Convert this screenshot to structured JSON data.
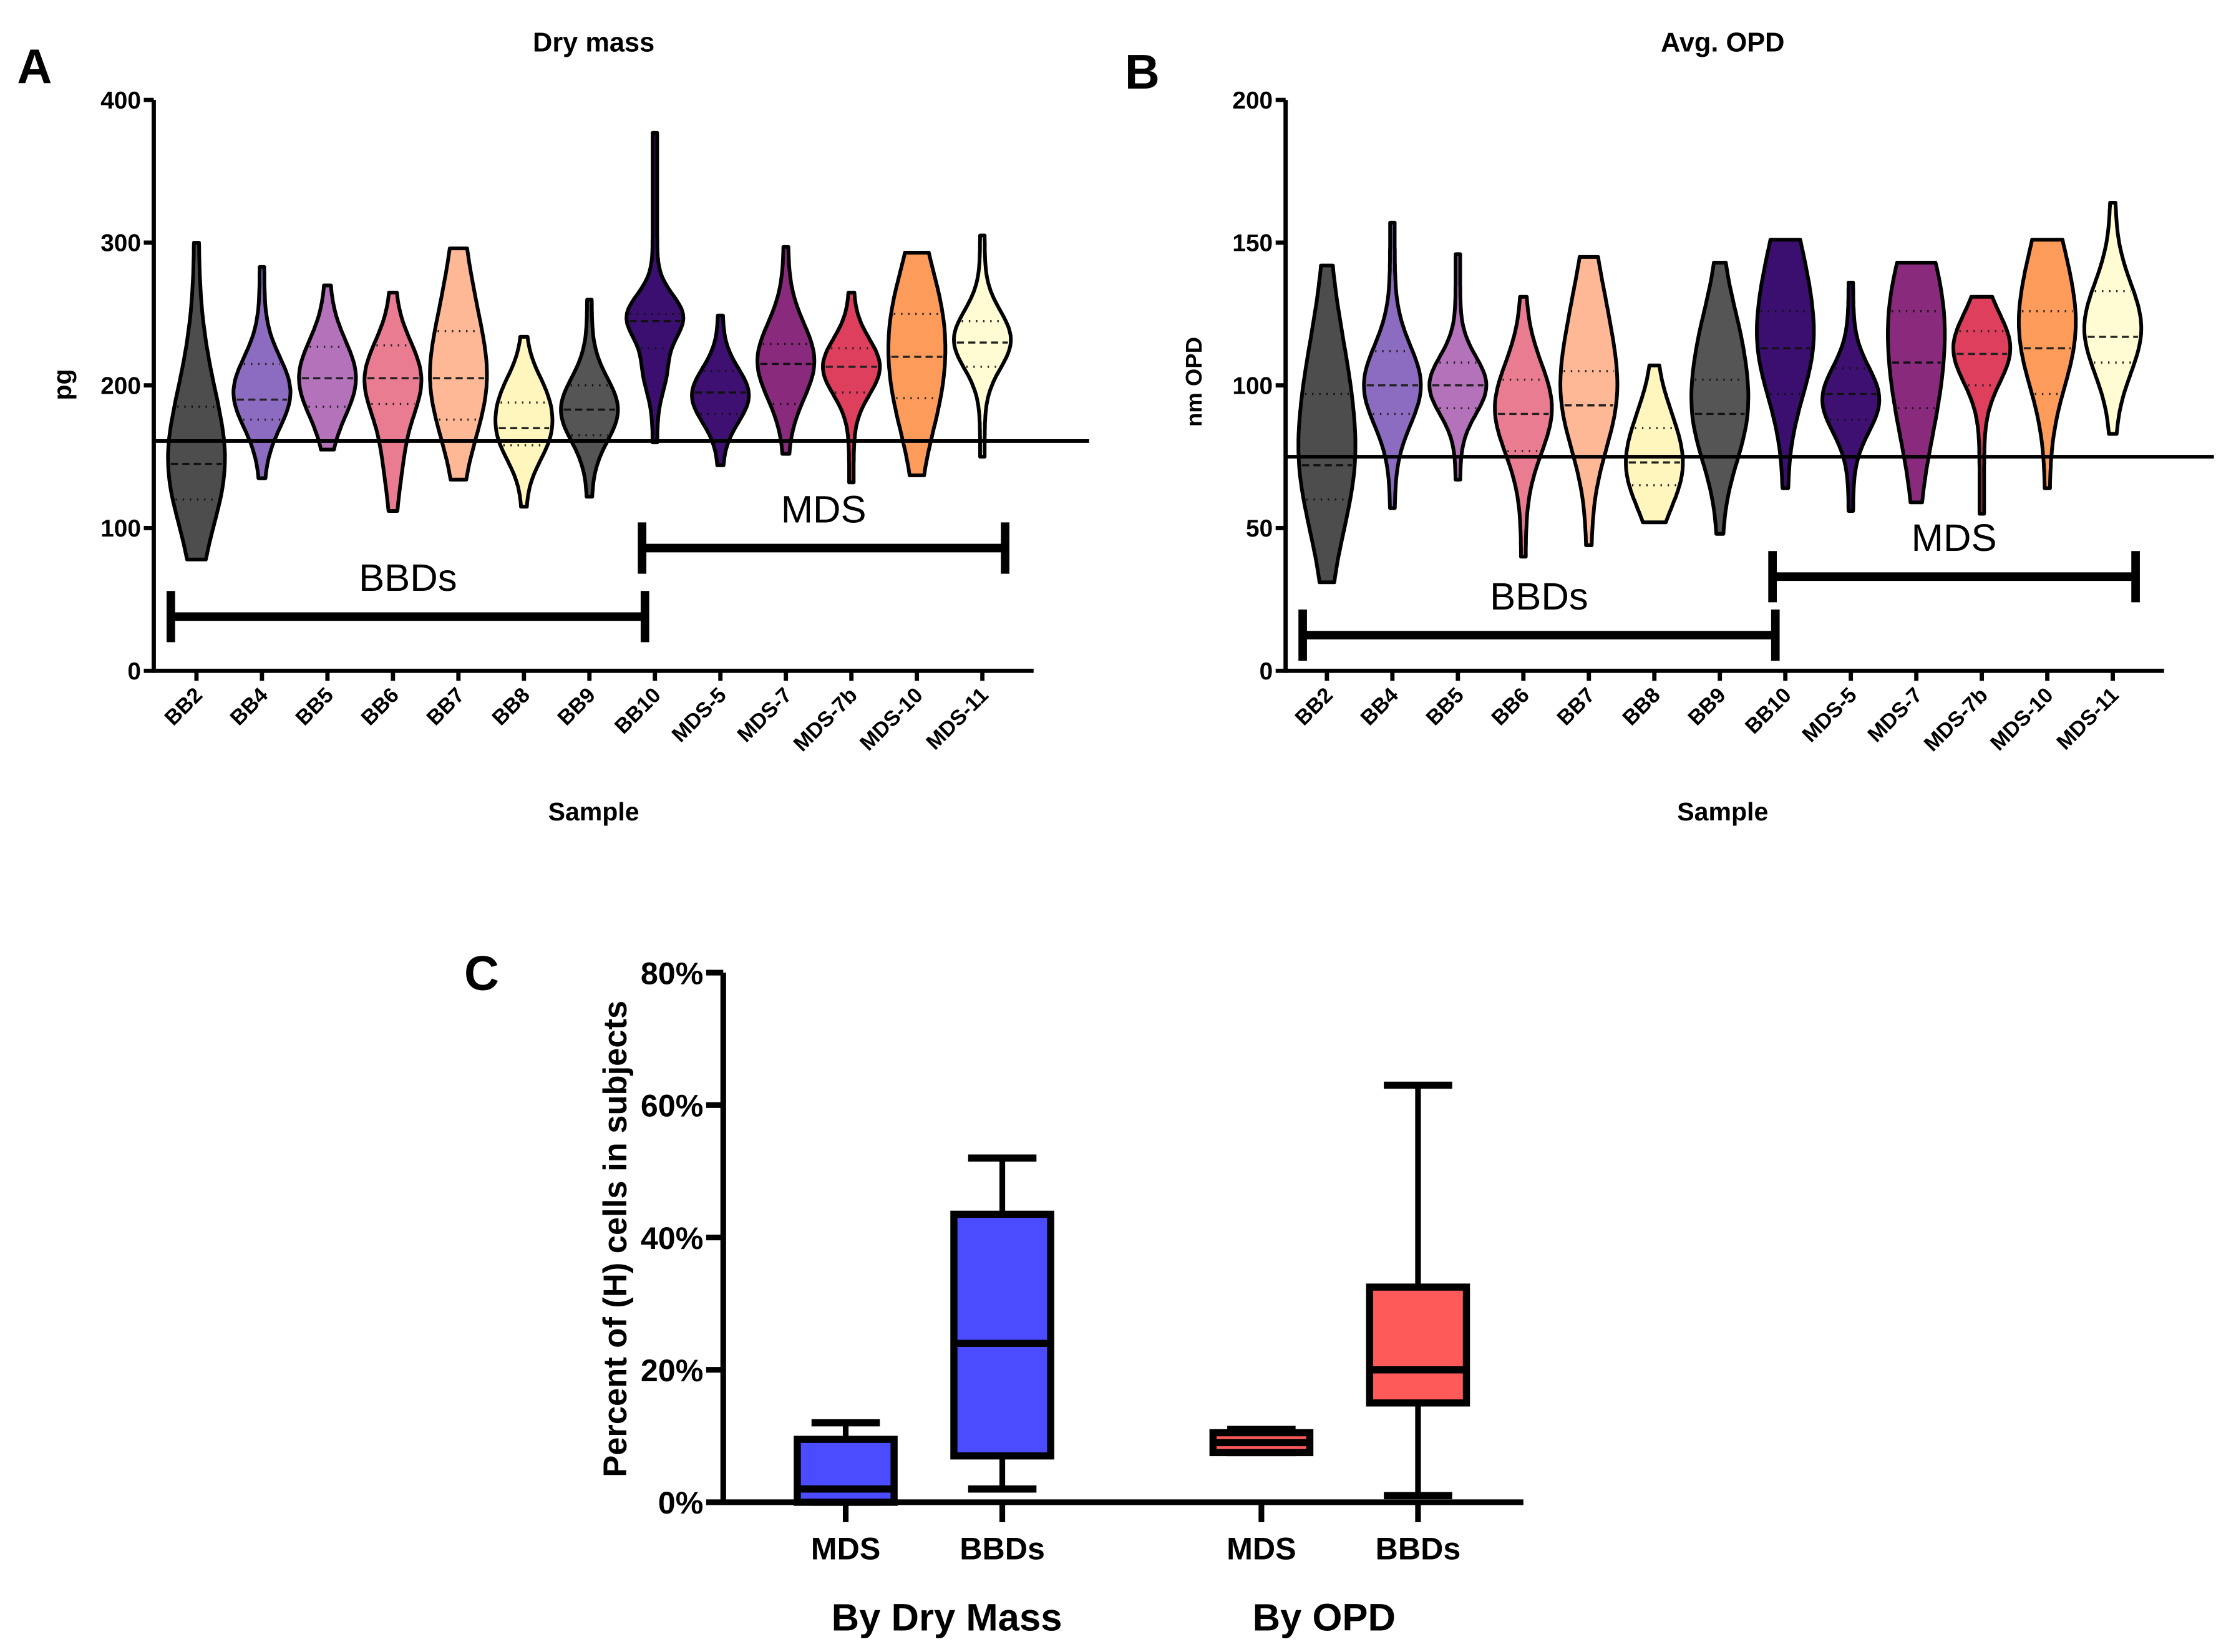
{
  "panel_letters": {
    "a": "A",
    "b": "B",
    "c": "C"
  },
  "chart_data": [
    {
      "type": "violin",
      "title": "Dry mass",
      "xlabel": "Sample",
      "ylabel": "pg",
      "ylim": [
        0,
        400
      ],
      "yticks": [
        0,
        100,
        200,
        300,
        400
      ],
      "threshold": 161,
      "groups": [
        {
          "label": "BBDs",
          "y": 38,
          "from": "BB2",
          "to": "BB10"
        },
        {
          "label": "MDS",
          "y": 86,
          "from": "BB10",
          "to": "MDS-11"
        }
      ],
      "violins": [
        {
          "name": "BB2",
          "color": "#4d4d4d",
          "min": 78,
          "max": 300,
          "q1": 120,
          "median": 145,
          "q3": 185,
          "peaks": [
            [
              140,
              1
            ],
            [
              195,
              0.35
            ]
          ]
        },
        {
          "name": "BB4",
          "color": "#8c6cc0",
          "min": 135,
          "max": 283,
          "q1": 176,
          "median": 190,
          "q3": 215,
          "peaks": [
            [
              195,
              1
            ]
          ]
        },
        {
          "name": "BB5",
          "color": "#b472ba",
          "min": 155,
          "max": 270,
          "q1": 185,
          "median": 205,
          "q3": 227,
          "peaks": [
            [
              205,
              1
            ]
          ]
        },
        {
          "name": "BB6",
          "color": "#ea7c92",
          "min": 112,
          "max": 265,
          "q1": 187,
          "median": 205,
          "q3": 228,
          "peaks": [
            [
              205,
              1
            ],
            [
              150,
              0.25
            ]
          ]
        },
        {
          "name": "BB7",
          "color": "#ffb896",
          "min": 134,
          "max": 296,
          "q1": 176,
          "median": 205,
          "q3": 238,
          "peaks": [
            [
              200,
              1
            ],
            [
              260,
              0.35
            ]
          ]
        },
        {
          "name": "BB8",
          "color": "#fff6bd",
          "min": 115,
          "max": 234,
          "q1": 158,
          "median": 170,
          "q3": 188,
          "peaks": [
            [
              163,
              0.9
            ],
            [
              192,
              0.8
            ]
          ]
        },
        {
          "name": "BB9",
          "color": "#555555",
          "min": 122,
          "max": 260,
          "q1": 165,
          "median": 183,
          "q3": 200,
          "peaks": [
            [
              183,
              1
            ]
          ]
        },
        {
          "name": "BB10",
          "color": "#3b0f70",
          "min": 160,
          "max": 377,
          "q1": 226,
          "median": 245,
          "q3": 250,
          "peaks": [
            [
              248,
              1
            ],
            [
              210,
              0.35
            ]
          ]
        },
        {
          "name": "MDS-5",
          "color": "#3d1072",
          "min": 144,
          "max": 249,
          "q1": 180,
          "median": 195,
          "q3": 210,
          "peaks": [
            [
              193,
              1
            ]
          ]
        },
        {
          "name": "MDS-7",
          "color": "#8a2a7c",
          "min": 152,
          "max": 297,
          "q1": 187,
          "median": 215,
          "q3": 229,
          "peaks": [
            [
              217,
              1
            ]
          ]
        },
        {
          "name": "MDS-7b",
          "color": "#dd3f5c",
          "min": 132,
          "max": 265,
          "q1": 195,
          "median": 213,
          "q3": 226,
          "peaks": [
            [
              213,
              1
            ]
          ]
        },
        {
          "name": "MDS-10",
          "color": "#fd9b5b",
          "min": 137,
          "max": 293,
          "q1": 191,
          "median": 220,
          "q3": 250,
          "peaks": [
            [
              250,
              1
            ],
            [
              195,
              0.9
            ]
          ]
        },
        {
          "name": "MDS-11",
          "color": "#fffcd3",
          "min": 150,
          "max": 305,
          "q1": 213,
          "median": 230,
          "q3": 245,
          "peaks": [
            [
              232,
              1
            ]
          ]
        }
      ]
    },
    {
      "type": "violin",
      "title": "Avg. OPD",
      "xlabel": "Sample",
      "ylabel": "nm OPD",
      "ylim": [
        0,
        200
      ],
      "yticks": [
        0,
        50,
        100,
        150,
        200
      ],
      "threshold": 75,
      "groups": [
        {
          "label": "BBDs",
          "y": 12.5,
          "from": "BB2",
          "to": "BB10"
        },
        {
          "label": "MDS",
          "y": 33,
          "from": "BB10",
          "to": "MDS-11"
        }
      ],
      "violins": [
        {
          "name": "BB2",
          "color": "#4d4d4d",
          "min": 31,
          "max": 142,
          "q1": 60,
          "median": 72,
          "q3": 97,
          "peaks": [
            [
              70,
              1
            ],
            [
              105,
              0.6
            ]
          ]
        },
        {
          "name": "BB4",
          "color": "#8c6cc0",
          "min": 57,
          "max": 157,
          "q1": 90,
          "median": 100,
          "q3": 112,
          "peaks": [
            [
              100,
              1
            ]
          ]
        },
        {
          "name": "BB5",
          "color": "#b472ba",
          "min": 67,
          "max": 146,
          "q1": 92,
          "median": 100,
          "q3": 108,
          "peaks": [
            [
              100,
              1
            ]
          ]
        },
        {
          "name": "BB6",
          "color": "#ea7c92",
          "min": 40,
          "max": 131,
          "q1": 77,
          "median": 90,
          "q3": 102,
          "peaks": [
            [
              92,
              1
            ]
          ]
        },
        {
          "name": "BB7",
          "color": "#ffb896",
          "min": 44,
          "max": 145,
          "q1": 75,
          "median": 93,
          "q3": 105,
          "peaks": [
            [
              95,
              1
            ],
            [
              125,
              0.5
            ]
          ]
        },
        {
          "name": "BB8",
          "color": "#fff6bd",
          "min": 52,
          "max": 107,
          "q1": 65,
          "median": 73,
          "q3": 85,
          "peaks": [
            [
              68,
              1
            ],
            [
              85,
              0.6
            ]
          ]
        },
        {
          "name": "BB9",
          "color": "#555555",
          "min": 48,
          "max": 143,
          "q1": 75,
          "median": 90,
          "q3": 102,
          "peaks": [
            [
              88,
              1
            ],
            [
              115,
              0.7
            ]
          ]
        },
        {
          "name": "BB10",
          "color": "#3b0f70",
          "min": 64,
          "max": 151,
          "q1": 97,
          "median": 113,
          "q3": 126,
          "peaks": [
            [
              112,
              1
            ],
            [
              140,
              0.6
            ]
          ]
        },
        {
          "name": "MDS-5",
          "color": "#3d1072",
          "min": 56,
          "max": 136,
          "q1": 88,
          "median": 97,
          "q3": 106,
          "peaks": [
            [
              95,
              1
            ]
          ]
        },
        {
          "name": "MDS-7",
          "color": "#8a2a7c",
          "min": 59,
          "max": 143,
          "q1": 92,
          "median": 108,
          "q3": 126,
          "peaks": [
            [
              128,
              1
            ],
            [
              95,
              0.7
            ]
          ]
        },
        {
          "name": "MDS-7b",
          "color": "#dd3f5c",
          "min": 55,
          "max": 131,
          "q1": 100,
          "median": 111,
          "q3": 119,
          "peaks": [
            [
              113,
              1
            ]
          ]
        },
        {
          "name": "MDS-10",
          "color": "#fd9b5b",
          "min": 64,
          "max": 151,
          "q1": 97,
          "median": 113,
          "q3": 126,
          "peaks": [
            [
              115,
              1
            ],
            [
              140,
              0.6
            ]
          ]
        },
        {
          "name": "MDS-11",
          "color": "#fffcd3",
          "min": 83,
          "max": 164,
          "q1": 108,
          "median": 117,
          "q3": 133,
          "peaks": [
            [
              120,
              1
            ]
          ]
        }
      ]
    },
    {
      "type": "box",
      "ylabel": "Percent of (H) cells in subjects",
      "ylim": [
        0,
        80
      ],
      "yticks": [
        "0%",
        "20%",
        "40%",
        "60%",
        "80%"
      ],
      "ytick_values": [
        0,
        20,
        40,
        60,
        80
      ],
      "group_labels": [
        "By Dry Mass",
        "By OPD"
      ],
      "boxes": [
        {
          "label": "MDS",
          "group": "By Dry Mass",
          "color": "#4b4bff",
          "min": 0,
          "q1": 0,
          "median": 2,
          "q3": 9.5,
          "max": 12
        },
        {
          "label": "BBDs",
          "group": "By Dry Mass",
          "color": "#4b4bff",
          "min": 2,
          "q1": 7,
          "median": 24,
          "q3": 43.5,
          "max": 52
        },
        {
          "label": "MDS",
          "group": "By OPD",
          "color": "#ff5a5a",
          "min": 7.5,
          "q1": 7.5,
          "median": 9,
          "q3": 10.5,
          "max": 11
        },
        {
          "label": "BBDs",
          "group": "By OPD",
          "color": "#ff5a5a",
          "min": 1,
          "q1": 15,
          "median": 20,
          "q3": 32.5,
          "max": 63
        }
      ]
    }
  ]
}
